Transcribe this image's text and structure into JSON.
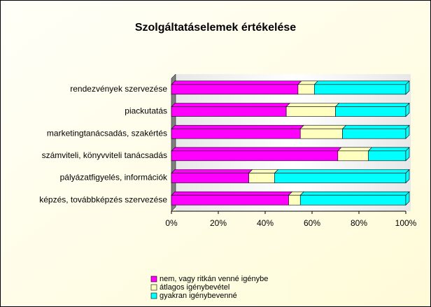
{
  "chart_data": {
    "type": "bar",
    "orientation": "horizontal",
    "stacked": true,
    "title": "Szolgáltatáselemek értékelése",
    "categories": [
      "rendezvények szervezése",
      "piackutatás",
      "marketingtanácsadás, szakértés",
      "számviteli, könyvviteli tanácsadás",
      "pályázatfigyelés, információk",
      "képzés, továbbképzés szervezése"
    ],
    "series": [
      {
        "name": "nem, vagy ritkán venné igénybe",
        "color": "#ff00ff",
        "values": [
          54,
          49,
          55,
          71,
          33,
          50
        ]
      },
      {
        "name": "átlagos igénybevétel",
        "color": "#ffffc0",
        "values": [
          7,
          21,
          18,
          13,
          11,
          5
        ]
      },
      {
        "name": "gyakran igénybevenné",
        "color": "#00ffff",
        "values": [
          39,
          30,
          27,
          16,
          56,
          45
        ]
      }
    ],
    "xlim": [
      0,
      100
    ],
    "xticks": [
      {
        "value": 0,
        "label": "0%"
      },
      {
        "value": 20,
        "label": "20%"
      },
      {
        "value": 40,
        "label": "40%"
      },
      {
        "value": 60,
        "label": "60%"
      },
      {
        "value": 80,
        "label": "80%"
      },
      {
        "value": 100,
        "label": "100%"
      }
    ],
    "legend": "bottom"
  }
}
